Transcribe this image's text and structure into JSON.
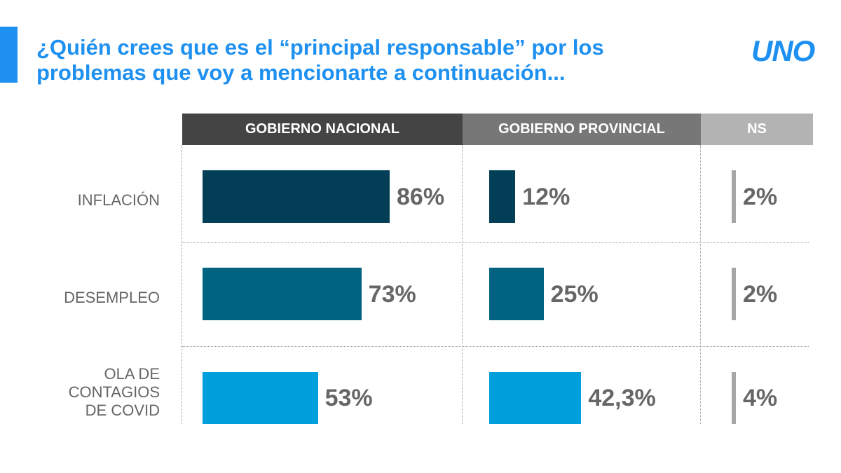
{
  "title": {
    "line1": "¿Quién crees que es el “principal responsable” por los",
    "line2": "problemas que voy a mencionarte a continuación..."
  },
  "logo": "UNO",
  "colors": {
    "accent": "#1e90f0",
    "header_nacional": "#444444",
    "header_provincial": "#777777",
    "header_ns": "#b3b3b3",
    "bar_row1": "#023f57",
    "bar_row2": "#016382",
    "bar_row3": "#01a0dc",
    "bar_ns": "#a6a6a6"
  },
  "chart_data": {
    "type": "bar",
    "columns": [
      "GOBIERNO NACIONAL",
      "GOBIERNO PROVINCIAL",
      "NS"
    ],
    "categories": [
      "INFLACIÓN",
      "DESEMPLEO",
      "OLA DE \nCONTAGIOS\nDE COVID"
    ],
    "series": [
      {
        "name": "GOBIERNO NACIONAL",
        "values": [
          86,
          73,
          53
        ],
        "labels": [
          "86%",
          "73%",
          "53%"
        ]
      },
      {
        "name": "GOBIERNO PROVINCIAL",
        "values": [
          12,
          25,
          42.3
        ],
        "labels": [
          "12%",
          "25%",
          "42,3%"
        ]
      },
      {
        "name": "NS",
        "values": [
          2,
          2,
          4
        ],
        "labels": [
          "2%",
          "2%",
          "4%"
        ]
      }
    ]
  }
}
